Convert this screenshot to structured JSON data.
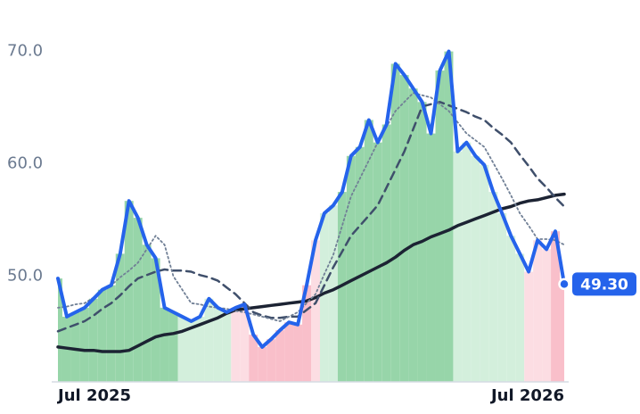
{
  "chart_data": {
    "type": "line",
    "categories": [
      "Jul 2025",
      null,
      null,
      null,
      null,
      null,
      null,
      null,
      null,
      null,
      null,
      null,
      null,
      null,
      null,
      null,
      null,
      null,
      null,
      null,
      null,
      null,
      null,
      null,
      null,
      null,
      null,
      null,
      null,
      null,
      null,
      null,
      null,
      null,
      null,
      null,
      null,
      null,
      null,
      null,
      null,
      null,
      null,
      null,
      null,
      null,
      null,
      null,
      null,
      null,
      null,
      null,
      null,
      null,
      null,
      null,
      null,
      "Jul 2026"
    ],
    "ylim": [
      40.6,
      71.4
    ],
    "yticks": [
      {
        "value": 50,
        "label": "50.0"
      },
      {
        "value": 60,
        "label": "60.0"
      },
      {
        "value": 70,
        "label": "70.0"
      }
    ],
    "grid": false,
    "series": [
      {
        "color": "#2563eb",
        "width": 4,
        "dash": "none",
        "values": [
          49.8,
          46.4,
          46.8,
          47.2,
          48.0,
          48.8,
          49.2,
          52.0,
          56.7,
          55.2,
          52.8,
          51.6,
          47.2,
          46.8,
          46.4,
          46.0,
          46.4,
          48.0,
          47.2,
          46.8,
          47.2,
          47.5,
          44.8,
          43.7,
          44.4,
          45.2,
          45.9,
          45.7,
          49.2,
          53.2,
          55.6,
          56.3,
          57.5,
          60.7,
          61.5,
          63.9,
          61.9,
          63.5,
          68.9,
          67.9,
          66.7,
          65.5,
          62.7,
          68.3,
          70.0,
          61.1,
          61.9,
          60.7,
          59.9,
          57.5,
          55.6,
          53.6,
          52.0,
          50.4,
          53.2,
          52.4,
          54.0,
          49.3
        ],
        "value_labels": [
          null,
          null,
          null,
          null,
          null,
          null,
          null,
          null,
          null,
          null,
          null,
          null,
          null,
          null,
          null,
          null,
          null,
          null,
          null,
          null,
          null,
          null,
          null,
          null,
          null,
          null,
          null,
          null,
          null,
          null,
          null,
          null,
          null,
          null,
          null,
          null,
          null,
          null,
          null,
          null,
          null,
          null,
          null,
          null,
          null,
          null,
          null,
          null,
          null,
          null,
          null,
          null,
          null,
          null,
          null,
          null,
          null,
          "49.30"
        ],
        "area_colors": [
          "#97d5a9",
          "#97d5a9",
          "#97d5a9",
          "#97d5a9",
          "#97d5a9",
          "#97d5a9",
          "#97d5a9",
          "#97d5a9",
          "#97d5a9",
          "#97d5a9",
          "#97d5a9",
          "#97d5a9",
          "#97d5a9",
          "#97d5a9",
          "#d3efdc",
          "#d3efdc",
          "#d3efdc",
          "#d3efdc",
          "#d3efdc",
          "#d3efdc",
          "#fcdde3",
          "#fcdde3",
          "#f9bfca",
          "#f9bfca",
          "#f9bfca",
          "#f9bfca",
          "#f9bfca",
          "#f9bfca",
          "#f9bfca",
          "#fcdde3",
          "#d3efdc",
          "#d3efdc",
          "#97d5a9",
          "#97d5a9",
          "#97d5a9",
          "#97d5a9",
          "#97d5a9",
          "#97d5a9",
          "#97d5a9",
          "#97d5a9",
          "#97d5a9",
          "#97d5a9",
          "#97d5a9",
          "#97d5a9",
          "#97d5a9",
          "#d3efdc",
          "#d3efdc",
          "#d3efdc",
          "#d3efdc",
          "#d3efdc",
          "#d3efdc",
          "#d3efdc",
          "#d3efdc",
          "#fcdde3",
          "#fcdde3",
          "#fcdde3",
          "#f9bfca",
          "#f9bfca"
        ]
      },
      {
        "color": "#718096",
        "width": 1.8,
        "dash": "2 3",
        "values": [
          47.2,
          47.3,
          47.5,
          47.6,
          48.1,
          48.7,
          49.2,
          49.9,
          50.5,
          51.2,
          52.4,
          53.6,
          52.8,
          50.0,
          48.8,
          47.6,
          47.5,
          47.3,
          47.2,
          47.1,
          46.9,
          46.8,
          46.6,
          46.4,
          46.2,
          46.0,
          46.4,
          46.8,
          47.6,
          48.4,
          50.2,
          51.9,
          54.5,
          57.1,
          58.7,
          60.3,
          61.9,
          63.3,
          64.7,
          65.5,
          66.3,
          66.1,
          65.9,
          65.3,
          64.7,
          63.7,
          62.7,
          62.1,
          61.5,
          60.1,
          58.7,
          57.2,
          55.6,
          54.5,
          53.3,
          53.3,
          53.2,
          52.8
        ]
      },
      {
        "color": "#3f4f6b",
        "width": 2.5,
        "dash": "9 6",
        "values": [
          45.1,
          45.4,
          45.7,
          46.0,
          46.5,
          47.1,
          47.6,
          48.3,
          49.1,
          49.8,
          50.1,
          50.4,
          50.6,
          50.5,
          50.5,
          50.4,
          50.1,
          49.9,
          49.6,
          49.0,
          48.4,
          47.6,
          46.8,
          46.5,
          46.3,
          46.3,
          46.4,
          46.4,
          47.0,
          47.6,
          49.2,
          50.8,
          52.2,
          53.6,
          54.5,
          55.4,
          56.3,
          57.9,
          59.5,
          61.1,
          63.1,
          65.1,
          65.3,
          65.5,
          65.2,
          64.9,
          64.6,
          64.2,
          63.9,
          63.2,
          62.6,
          61.9,
          60.8,
          59.8,
          58.7,
          57.9,
          57.0,
          56.2
        ]
      },
      {
        "color": "#1c2333",
        "width": 3.5,
        "dash": "none",
        "values": [
          43.7,
          43.6,
          43.5,
          43.4,
          43.4,
          43.3,
          43.3,
          43.3,
          43.4,
          43.8,
          44.2,
          44.6,
          44.8,
          44.9,
          45.1,
          45.4,
          45.7,
          46.0,
          46.3,
          46.7,
          47.0,
          47.1,
          47.2,
          47.3,
          47.4,
          47.5,
          47.6,
          47.7,
          47.8,
          48.1,
          48.5,
          48.8,
          49.2,
          49.6,
          50.0,
          50.4,
          50.8,
          51.2,
          51.7,
          52.3,
          52.8,
          53.1,
          53.5,
          53.8,
          54.1,
          54.5,
          54.8,
          55.1,
          55.4,
          55.7,
          56.0,
          56.2,
          56.5,
          56.7,
          56.8,
          57.0,
          57.2,
          57.3
        ]
      }
    ]
  }
}
